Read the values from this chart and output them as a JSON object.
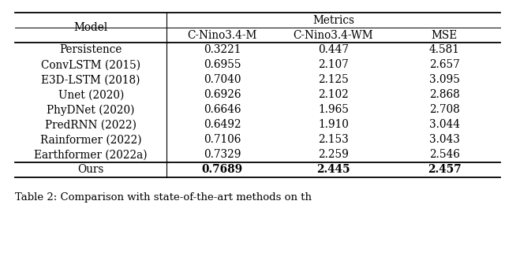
{
  "col_headers_row1": [
    "Model",
    "Metrics"
  ],
  "col_headers_row2": [
    "",
    "C-Nino3.4-M",
    "C-Nino3.4-WM",
    "MSE"
  ],
  "rows": [
    [
      "Persistence",
      "0.3221",
      "0.447",
      "4.581"
    ],
    [
      "ConvLSTM (2015)",
      "0.6955",
      "2.107",
      "2.657"
    ],
    [
      "E3D-LSTM (2018)",
      "0.7040",
      "2.125",
      "3.095"
    ],
    [
      "Unet (2020)",
      "0.6926",
      "2.102",
      "2.868"
    ],
    [
      "PhyDNet (2020)",
      "0.6646",
      "1.965",
      "2.708"
    ],
    [
      "PredRNN (2022)",
      "0.6492",
      "1.910",
      "3.044"
    ],
    [
      "Rainformer (2022)",
      "0.7106",
      "2.153",
      "3.043"
    ],
    [
      "Earthformer (2022a)",
      "0.7329",
      "2.259",
      "2.546"
    ]
  ],
  "last_row": [
    "Ours",
    "0.7689",
    "2.445",
    "2.457"
  ],
  "font_size": 9.8,
  "font_family": "DejaVu Serif"
}
